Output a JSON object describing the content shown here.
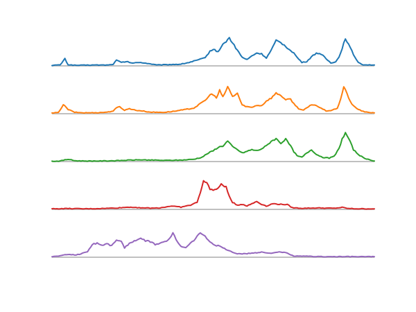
{
  "chart_data": {
    "type": "line",
    "x_range": [
      0,
      200
    ],
    "y_range": [
      0,
      1
    ],
    "grid": false,
    "legend": "none",
    "series": [
      {
        "color": "#1f77b4",
        "keypoints": [
          [
            0,
            0.02
          ],
          [
            5,
            0.03
          ],
          [
            8,
            0.25
          ],
          [
            10,
            0.04
          ],
          [
            15,
            0.02
          ],
          [
            25,
            0.03
          ],
          [
            35,
            0.03
          ],
          [
            38,
            0.06
          ],
          [
            40,
            0.2
          ],
          [
            43,
            0.12
          ],
          [
            46,
            0.15
          ],
          [
            50,
            0.1
          ],
          [
            55,
            0.12
          ],
          [
            60,
            0.08
          ],
          [
            65,
            0.03
          ],
          [
            70,
            0.04
          ],
          [
            80,
            0.06
          ],
          [
            85,
            0.12
          ],
          [
            90,
            0.2
          ],
          [
            95,
            0.28
          ],
          [
            98,
            0.52
          ],
          [
            100,
            0.58
          ],
          [
            103,
            0.5
          ],
          [
            106,
            0.75
          ],
          [
            110,
            0.98
          ],
          [
            113,
            0.72
          ],
          [
            115,
            0.55
          ],
          [
            118,
            0.3
          ],
          [
            121,
            0.22
          ],
          [
            124,
            0.35
          ],
          [
            127,
            0.45
          ],
          [
            130,
            0.42
          ],
          [
            133,
            0.28
          ],
          [
            136,
            0.55
          ],
          [
            139,
            0.88
          ],
          [
            142,
            0.82
          ],
          [
            145,
            0.68
          ],
          [
            148,
            0.55
          ],
          [
            150,
            0.45
          ],
          [
            152,
            0.3
          ],
          [
            155,
            0.12
          ],
          [
            158,
            0.15
          ],
          [
            161,
            0.32
          ],
          [
            164,
            0.45
          ],
          [
            167,
            0.42
          ],
          [
            170,
            0.25
          ],
          [
            173,
            0.1
          ],
          [
            176,
            0.15
          ],
          [
            178,
            0.3
          ],
          [
            180,
            0.62
          ],
          [
            182,
            0.98
          ],
          [
            184,
            0.75
          ],
          [
            187,
            0.4
          ],
          [
            190,
            0.12
          ],
          [
            193,
            0.04
          ],
          [
            200,
            0.03
          ]
        ]
      },
      {
        "color": "#ff7f0e",
        "keypoints": [
          [
            0,
            0.02
          ],
          [
            4,
            0.04
          ],
          [
            7,
            0.32
          ],
          [
            10,
            0.15
          ],
          [
            14,
            0.05
          ],
          [
            20,
            0.03
          ],
          [
            30,
            0.04
          ],
          [
            35,
            0.06
          ],
          [
            38,
            0.1
          ],
          [
            40,
            0.2
          ],
          [
            42,
            0.25
          ],
          [
            45,
            0.12
          ],
          [
            48,
            0.18
          ],
          [
            52,
            0.12
          ],
          [
            56,
            0.1
          ],
          [
            60,
            0.06
          ],
          [
            64,
            0.05
          ],
          [
            70,
            0.05
          ],
          [
            75,
            0.08
          ],
          [
            82,
            0.14
          ],
          [
            88,
            0.2
          ],
          [
            92,
            0.35
          ],
          [
            96,
            0.52
          ],
          [
            99,
            0.72
          ],
          [
            102,
            0.55
          ],
          [
            104,
            0.82
          ],
          [
            106,
            0.58
          ],
          [
            109,
            0.95
          ],
          [
            112,
            0.6
          ],
          [
            115,
            0.72
          ],
          [
            118,
            0.3
          ],
          [
            121,
            0.25
          ],
          [
            124,
            0.22
          ],
          [
            127,
            0.3
          ],
          [
            130,
            0.28
          ],
          [
            133,
            0.45
          ],
          [
            136,
            0.55
          ],
          [
            139,
            0.72
          ],
          [
            142,
            0.65
          ],
          [
            145,
            0.48
          ],
          [
            148,
            0.52
          ],
          [
            150,
            0.35
          ],
          [
            153,
            0.18
          ],
          [
            156,
            0.12
          ],
          [
            160,
            0.28
          ],
          [
            163,
            0.32
          ],
          [
            166,
            0.22
          ],
          [
            170,
            0.1
          ],
          [
            174,
            0.12
          ],
          [
            177,
            0.2
          ],
          [
            179,
            0.5
          ],
          [
            181,
            0.95
          ],
          [
            183,
            0.7
          ],
          [
            186,
            0.32
          ],
          [
            190,
            0.15
          ],
          [
            194,
            0.06
          ],
          [
            200,
            0.03
          ]
        ]
      },
      {
        "color": "#2ca02c",
        "keypoints": [
          [
            0,
            0.01
          ],
          [
            5,
            0.02
          ],
          [
            10,
            0.08
          ],
          [
            14,
            0.03
          ],
          [
            20,
            0.02
          ],
          [
            30,
            0.02
          ],
          [
            40,
            0.03
          ],
          [
            48,
            0.05
          ],
          [
            55,
            0.06
          ],
          [
            62,
            0.05
          ],
          [
            70,
            0.04
          ],
          [
            80,
            0.05
          ],
          [
            88,
            0.08
          ],
          [
            93,
            0.15
          ],
          [
            97,
            0.3
          ],
          [
            100,
            0.38
          ],
          [
            103,
            0.5
          ],
          [
            106,
            0.55
          ],
          [
            109,
            0.72
          ],
          [
            112,
            0.52
          ],
          [
            115,
            0.42
          ],
          [
            118,
            0.3
          ],
          [
            121,
            0.36
          ],
          [
            124,
            0.42
          ],
          [
            127,
            0.38
          ],
          [
            130,
            0.45
          ],
          [
            133,
            0.55
          ],
          [
            136,
            0.72
          ],
          [
            139,
            0.8
          ],
          [
            142,
            0.65
          ],
          [
            145,
            0.78
          ],
          [
            148,
            0.55
          ],
          [
            150,
            0.35
          ],
          [
            152,
            0.2
          ],
          [
            155,
            0.15
          ],
          [
            158,
            0.3
          ],
          [
            161,
            0.42
          ],
          [
            164,
            0.25
          ],
          [
            168,
            0.15
          ],
          [
            172,
            0.12
          ],
          [
            175,
            0.18
          ],
          [
            178,
            0.45
          ],
          [
            180,
            0.8
          ],
          [
            182,
            1.0
          ],
          [
            184,
            0.82
          ],
          [
            187,
            0.42
          ],
          [
            190,
            0.25
          ],
          [
            194,
            0.1
          ],
          [
            200,
            0.02
          ]
        ]
      },
      {
        "color": "#d62728",
        "keypoints": [
          [
            0,
            0.02
          ],
          [
            10,
            0.03
          ],
          [
            20,
            0.02
          ],
          [
            30,
            0.03
          ],
          [
            40,
            0.05
          ],
          [
            48,
            0.08
          ],
          [
            55,
            0.06
          ],
          [
            62,
            0.04
          ],
          [
            68,
            0.06
          ],
          [
            74,
            0.12
          ],
          [
            80,
            0.08
          ],
          [
            86,
            0.15
          ],
          [
            90,
            0.25
          ],
          [
            92,
            0.6
          ],
          [
            94,
            0.98
          ],
          [
            96,
            0.95
          ],
          [
            98,
            0.72
          ],
          [
            100,
            0.68
          ],
          [
            103,
            0.72
          ],
          [
            105,
            0.9
          ],
          [
            108,
            0.78
          ],
          [
            110,
            0.45
          ],
          [
            112,
            0.25
          ],
          [
            115,
            0.15
          ],
          [
            118,
            0.18
          ],
          [
            121,
            0.12
          ],
          [
            124,
            0.2
          ],
          [
            127,
            0.28
          ],
          [
            130,
            0.18
          ],
          [
            133,
            0.12
          ],
          [
            137,
            0.2
          ],
          [
            141,
            0.18
          ],
          [
            146,
            0.17
          ],
          [
            149,
            0.06
          ],
          [
            155,
            0.04
          ],
          [
            165,
            0.05
          ],
          [
            175,
            0.04
          ],
          [
            180,
            0.07
          ],
          [
            184,
            0.03
          ],
          [
            190,
            0.02
          ],
          [
            200,
            0.02
          ]
        ]
      },
      {
        "color": "#9467bd",
        "keypoints": [
          [
            0,
            0.02
          ],
          [
            5,
            0.05
          ],
          [
            10,
            0.1
          ],
          [
            15,
            0.08
          ],
          [
            18,
            0.12
          ],
          [
            22,
            0.2
          ],
          [
            25,
            0.45
          ],
          [
            28,
            0.5
          ],
          [
            31,
            0.42
          ],
          [
            34,
            0.48
          ],
          [
            37,
            0.4
          ],
          [
            40,
            0.62
          ],
          [
            43,
            0.55
          ],
          [
            45,
            0.32
          ],
          [
            48,
            0.5
          ],
          [
            52,
            0.6
          ],
          [
            55,
            0.65
          ],
          [
            58,
            0.58
          ],
          [
            61,
            0.55
          ],
          [
            64,
            0.45
          ],
          [
            67,
            0.48
          ],
          [
            70,
            0.55
          ],
          [
            73,
            0.65
          ],
          [
            75,
            0.85
          ],
          [
            77,
            0.62
          ],
          [
            80,
            0.38
          ],
          [
            83,
            0.35
          ],
          [
            86,
            0.5
          ],
          [
            89,
            0.65
          ],
          [
            92,
            0.88
          ],
          [
            95,
            0.72
          ],
          [
            98,
            0.55
          ],
          [
            101,
            0.42
          ],
          [
            104,
            0.4
          ],
          [
            107,
            0.3
          ],
          [
            110,
            0.22
          ],
          [
            115,
            0.12
          ],
          [
            120,
            0.12
          ],
          [
            125,
            0.15
          ],
          [
            130,
            0.18
          ],
          [
            135,
            0.14
          ],
          [
            140,
            0.18
          ],
          [
            145,
            0.16
          ],
          [
            150,
            0.04
          ],
          [
            160,
            0.03
          ],
          [
            170,
            0.02
          ],
          [
            180,
            0.02
          ],
          [
            200,
            0.02
          ]
        ]
      }
    ]
  }
}
